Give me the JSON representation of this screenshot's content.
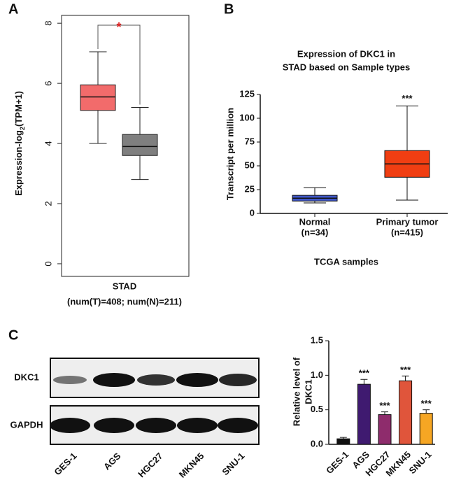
{
  "chart_data": [
    {
      "type": "box",
      "panel_label": "A",
      "y_label_parts": [
        "Expression-log",
        "2",
        "(TPM+1)"
      ],
      "x_label": "STAD",
      "x_sublabel": "(num(T)=408; num(N)=211)",
      "annotation": "*",
      "ylim": [
        -0.42,
        8.26
      ],
      "yticks": [
        0,
        2,
        4,
        6,
        8
      ],
      "boxes": [
        {
          "color": "#f26b6b",
          "whisker_low": 4.0,
          "q1": 5.1,
          "median": 5.55,
          "q3": 5.95,
          "whisker_high": 7.05
        },
        {
          "color": "#7f7f7f",
          "whisker_low": 2.8,
          "q1": 3.6,
          "median": 3.9,
          "q3": 4.3,
          "whisker_high": 5.2
        }
      ]
    },
    {
      "type": "box",
      "panel_label": "B",
      "title": [
        "Expression of DKC1 in",
        "STAD based on Sample types"
      ],
      "y_label": "Transcript per million",
      "x_label": "TCGA samples",
      "categories": [
        "Normal",
        "Primary tumor"
      ],
      "category_counts": [
        "(n=34)",
        "(n=415)"
      ],
      "annotation": "***",
      "ylim": [
        0,
        125
      ],
      "yticks": [
        0,
        25,
        50,
        75,
        100,
        125
      ],
      "boxes": [
        {
          "color": "#3f56c8",
          "whisker_low": 11,
          "q1": 13,
          "median": 16,
          "q3": 19,
          "whisker_high": 27
        },
        {
          "color": "#f03e12",
          "whisker_low": 14,
          "q1": 38,
          "median": 52,
          "q3": 66,
          "whisker_high": 113
        }
      ]
    },
    {
      "type": "bar",
      "y_label": [
        "Relative level of",
        "DKC1"
      ],
      "categories": [
        "GES-1",
        "AGS",
        "HGC27",
        "MKN45",
        "SNU-1"
      ],
      "values": [
        0.08,
        0.87,
        0.43,
        0.92,
        0.45
      ],
      "errors": [
        0.02,
        0.07,
        0.04,
        0.07,
        0.05
      ],
      "colors": [
        "#111111",
        "#3f1a70",
        "#8e2c6c",
        "#e0553b",
        "#f6a623"
      ],
      "annotations": [
        null,
        "***",
        "***",
        "***",
        "***"
      ],
      "ylim": [
        0,
        1.5
      ],
      "yticks": [
        {
          "value": 0,
          "label": "0.0"
        },
        0.5,
        {
          "value": 1,
          "label": "1.0"
        },
        1.5
      ]
    }
  ],
  "blot": {
    "panel_label": "C",
    "rows": [
      "DKC1",
      "GAPDH"
    ],
    "lanes": [
      "GES-1",
      "AGS",
      "HGC27",
      "MKN45",
      "SNU-1"
    ]
  }
}
